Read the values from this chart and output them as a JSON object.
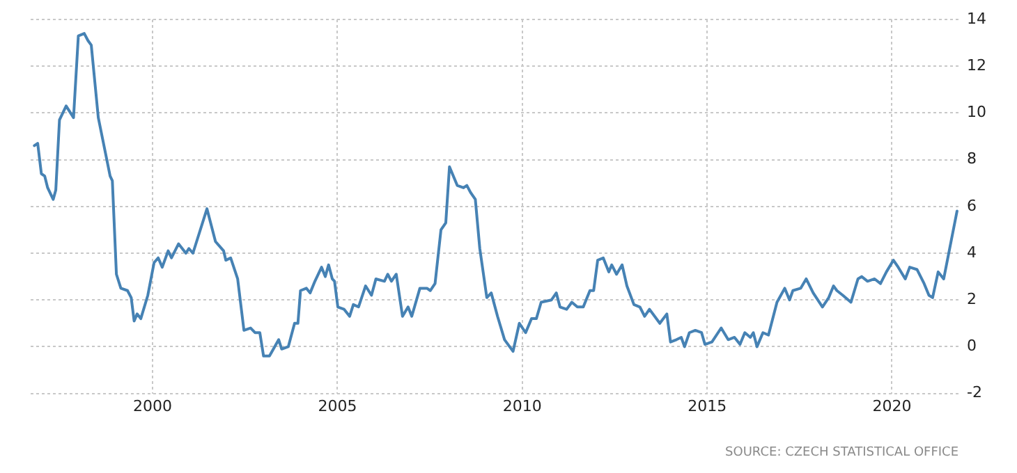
{
  "chart_data": {
    "type": "line",
    "x": [
      1996.8,
      1996.89,
      1996.99,
      1997.08,
      1997.16,
      1997.31,
      1997.38,
      1997.48,
      1997.66,
      1997.86,
      1997.99,
      1998.15,
      1998.25,
      1998.34,
      1998.53,
      1998.85,
      1998.91,
      1999.02,
      1999.14,
      1999.32,
      1999.42,
      1999.5,
      1999.58,
      1999.68,
      1999.87,
      2000.04,
      2000.15,
      2000.26,
      2000.42,
      2000.51,
      2000.7,
      2000.9,
      2000.98,
      2001.09,
      2001.47,
      2001.7,
      2001.92,
      2001.98,
      2002.11,
      2002.3,
      2002.47,
      2002.65,
      2002.77,
      2002.9,
      2003.0,
      2003.16,
      2003.41,
      2003.49,
      2003.67,
      2003.84,
      2003.93,
      2004.0,
      2004.16,
      2004.26,
      2004.39,
      2004.57,
      2004.67,
      2004.76,
      2004.86,
      2004.92,
      2005.01,
      2005.18,
      2005.33,
      2005.43,
      2005.57,
      2005.76,
      2005.92,
      2006.04,
      2006.27,
      2006.36,
      2006.46,
      2006.59,
      2006.76,
      2006.91,
      2007.01,
      2007.23,
      2007.42,
      2007.51,
      2007.64,
      2007.8,
      2007.93,
      2008.03,
      2008.24,
      2008.41,
      2008.5,
      2008.6,
      2008.73,
      2008.85,
      2009.04,
      2009.16,
      2009.33,
      2009.52,
      2009.75,
      2009.92,
      2010.09,
      2010.25,
      2010.38,
      2010.51,
      2010.79,
      2010.92,
      2011.02,
      2011.2,
      2011.34,
      2011.49,
      2011.65,
      2011.83,
      2011.93,
      2012.04,
      2012.19,
      2012.34,
      2012.42,
      2012.55,
      2012.7,
      2012.83,
      2013.02,
      2013.18,
      2013.31,
      2013.44,
      2013.72,
      2013.91,
      2014.01,
      2014.17,
      2014.3,
      2014.39,
      2014.52,
      2014.68,
      2014.85,
      2014.94,
      2015.13,
      2015.38,
      2015.57,
      2015.74,
      2015.89,
      2016.02,
      2016.17,
      2016.25,
      2016.35,
      2016.51,
      2016.66,
      2016.89,
      2017.1,
      2017.23,
      2017.32,
      2017.53,
      2017.68,
      2017.87,
      2018.12,
      2018.29,
      2018.42,
      2018.51,
      2018.67,
      2018.89,
      2019.08,
      2019.18,
      2019.34,
      2019.53,
      2019.69,
      2019.85,
      2020.04,
      2020.17,
      2020.36,
      2020.48,
      2020.68,
      2020.87,
      2021.0,
      2021.1,
      2021.25,
      2021.4,
      2021.76
    ],
    "series": [
      {
        "color": "#4682b4",
        "values": [
          8.6,
          8.7,
          7.4,
          7.3,
          6.8,
          6.3,
          6.7,
          9.7,
          10.3,
          9.8,
          13.3,
          13.4,
          13.1,
          12.9,
          9.8,
          7.3,
          7.1,
          3.1,
          2.5,
          2.4,
          2.1,
          1.1,
          1.4,
          1.2,
          2.2,
          3.6,
          3.8,
          3.4,
          4.1,
          3.8,
          4.4,
          4.0,
          4.2,
          4.0,
          5.9,
          4.5,
          4.1,
          3.7,
          3.8,
          2.9,
          0.7,
          0.8,
          0.6,
          0.6,
          -0.4,
          -0.4,
          0.3,
          -0.1,
          0.0,
          1.0,
          1.0,
          2.4,
          2.5,
          2.3,
          2.8,
          3.4,
          3.0,
          3.5,
          2.9,
          2.8,
          1.7,
          1.6,
          1.3,
          1.8,
          1.7,
          2.6,
          2.2,
          2.9,
          2.8,
          3.1,
          2.8,
          3.1,
          1.3,
          1.7,
          1.3,
          2.5,
          2.5,
          2.4,
          2.7,
          5.0,
          5.3,
          7.7,
          6.9,
          6.8,
          6.9,
          6.6,
          6.3,
          4.2,
          2.1,
          2.3,
          1.3,
          0.3,
          -0.2,
          1.0,
          0.6,
          1.2,
          1.2,
          1.9,
          2.0,
          2.3,
          1.7,
          1.6,
          1.9,
          1.7,
          1.7,
          2.4,
          2.4,
          3.7,
          3.8,
          3.2,
          3.5,
          3.1,
          3.5,
          2.6,
          1.8,
          1.7,
          1.3,
          1.6,
          1.0,
          1.4,
          0.2,
          0.3,
          0.4,
          0.0,
          0.6,
          0.7,
          0.6,
          0.1,
          0.2,
          0.8,
          0.3,
          0.4,
          0.1,
          0.6,
          0.4,
          0.6,
          0.0,
          0.6,
          0.5,
          1.9,
          2.5,
          2.0,
          2.4,
          2.5,
          2.9,
          2.3,
          1.7,
          2.1,
          2.6,
          2.4,
          2.2,
          1.9,
          2.9,
          3.0,
          2.8,
          2.9,
          2.7,
          3.2,
          3.7,
          3.4,
          2.9,
          3.4,
          3.3,
          2.7,
          2.2,
          2.1,
          3.2,
          2.9,
          5.8
        ]
      }
    ],
    "xlim": [
      1996.7,
      2021.8
    ],
    "xticks": [
      2000,
      2005,
      2010,
      2015,
      2020
    ],
    "ylim": [
      -2,
      14
    ],
    "yticks": [
      -2,
      0,
      2,
      4,
      6,
      8,
      10,
      12,
      14
    ],
    "grid": true,
    "legend": false,
    "marker": "none",
    "line_style": "solid",
    "annotations": [
      "SOURCE: CZECH STATISTICAL OFFICE"
    ]
  }
}
